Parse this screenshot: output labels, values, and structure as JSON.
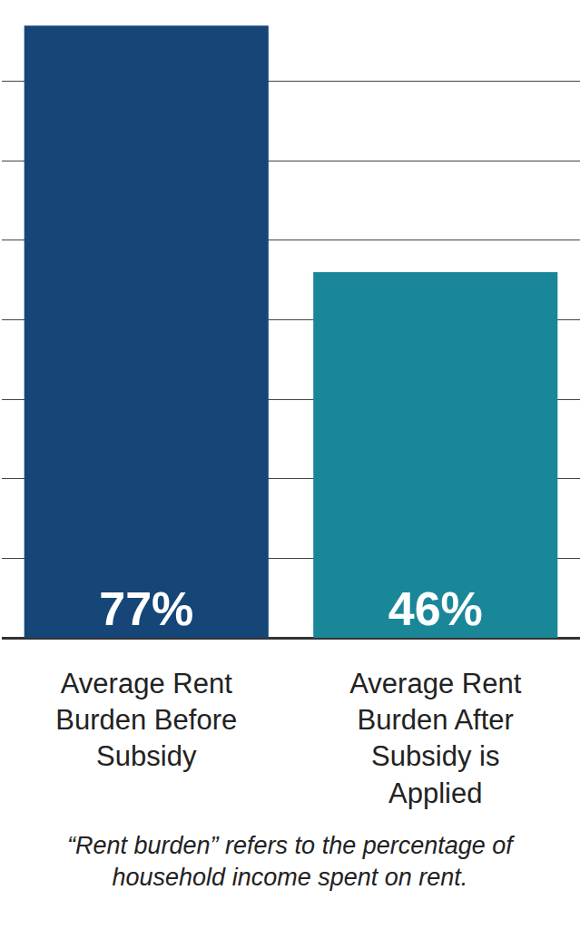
{
  "chart_data": {
    "type": "bar",
    "categories": [
      "Average Rent Burden Before Subsidy",
      "Average Rent Burden After Subsidy is Applied"
    ],
    "values": [
      77,
      46
    ],
    "value_labels": [
      "77%",
      "46%"
    ],
    "colors": [
      "#154677",
      "#1a8799"
    ],
    "ylim": [
      0,
      80
    ],
    "yticks": [
      0,
      10,
      20,
      30,
      40,
      50,
      60,
      70,
      80
    ],
    "grid": true,
    "data_labels": true,
    "tick_labels": "x",
    "annotations": [
      "“Rent burden” refers to the percentage of household income spent on rent."
    ]
  }
}
